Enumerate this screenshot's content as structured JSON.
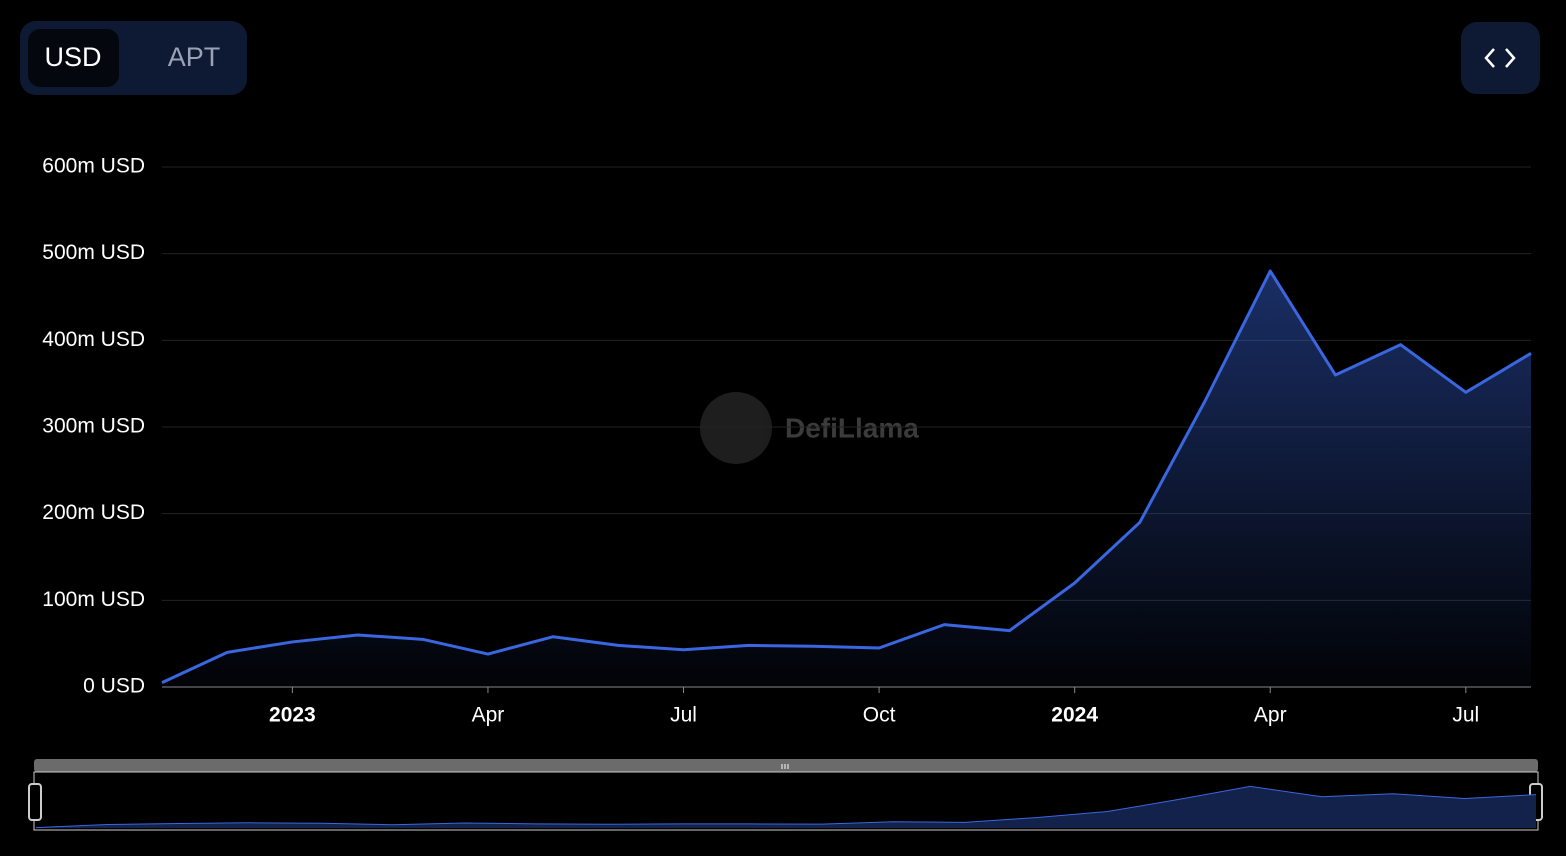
{
  "chart_data": {
    "type": "line",
    "toggle_options": [
      "USD",
      "APT"
    ],
    "watermark": "DefiLlama",
    "x": [
      "2022-11",
      "2022-12",
      "2023-01",
      "2023-02",
      "2023-03",
      "2023-04",
      "2023-05",
      "2023-06",
      "2023-07",
      "2023-08",
      "2023-09",
      "2023-10",
      "2023-11",
      "2023-12",
      "2024-01",
      "2024-02",
      "2024-03",
      "2024-04",
      "2024-05",
      "2024-06",
      "2024-07",
      "2024-08"
    ],
    "values": [
      5000000,
      40000000,
      52000000,
      60000000,
      55000000,
      38000000,
      58000000,
      48000000,
      43000000,
      48000000,
      47000000,
      45000000,
      72000000,
      65000000,
      120000000,
      190000000,
      330000000,
      480000000,
      360000000,
      395000000,
      340000000,
      385000000
    ],
    "color": "#3a67e0",
    "xlim": [
      "2022-11",
      "2024-08"
    ],
    "xticks": [
      {
        "value": "2023-01",
        "label": "2023"
      },
      {
        "value": "2023-04",
        "label": "Apr"
      },
      {
        "value": "2023-07",
        "label": "Jul"
      },
      {
        "value": "2023-10",
        "label": "Oct"
      },
      {
        "value": "2024-01",
        "label": "2024"
      },
      {
        "value": "2024-04",
        "label": "Apr"
      },
      {
        "value": "2024-07",
        "label": "Jul"
      }
    ],
    "ylim": [
      0,
      600000000
    ],
    "yticks": [
      {
        "value": 0,
        "label": "0 USD"
      },
      {
        "value": 100000000,
        "label": "100m USD"
      },
      {
        "value": 200000000,
        "label": "200m USD"
      },
      {
        "value": 300000000,
        "label": "300m USD"
      },
      {
        "value": 400000000,
        "label": "400m USD"
      },
      {
        "value": 500000000,
        "label": "500m USD"
      },
      {
        "value": 600000000,
        "label": "600m USD"
      }
    ],
    "grid": true
  }
}
